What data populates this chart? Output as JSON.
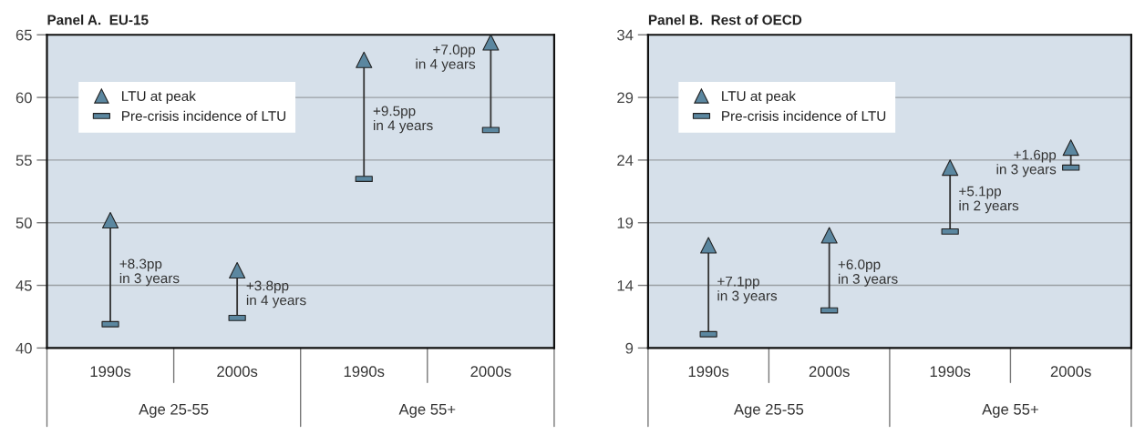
{
  "chart_data": [
    {
      "type": "scatter",
      "title": "Panel A.  EU-15",
      "categories": [
        "1990s",
        "2000s",
        "1990s",
        "2000s"
      ],
      "ylim": [
        40,
        65
      ],
      "yticks": [
        40,
        45,
        50,
        55,
        60,
        65
      ],
      "grid": "y",
      "legend": "top left",
      "series": [
        {
          "name": "LTU at peak",
          "color": "#5b87a0",
          "marker": "triangle",
          "values": [
            50.2,
            46.2,
            63.0,
            64.4
          ]
        },
        {
          "name": "Pre-crisis incidence of LTU",
          "color": "#5b87a0",
          "marker": "square",
          "values": [
            41.9,
            42.4,
            53.5,
            57.4
          ]
        }
      ],
      "annotations": [
        "+8.3pp\nin 3 years",
        "+3.8pp\nin 4 years",
        "+9.5pp\nin 4 years",
        "+7.0pp\nin 4 years",
        "Age 25-55",
        "Age 55+"
      ]
    },
    {
      "type": "scatter",
      "title": "Panel B.  Rest of OECD",
      "categories": [
        "1990s",
        "2000s",
        "1990s",
        "2000s"
      ],
      "ylim": [
        9,
        34
      ],
      "yticks": [
        9,
        14,
        19,
        24,
        29,
        34
      ],
      "grid": "y",
      "legend": "top left",
      "series": [
        {
          "name": "LTU at peak",
          "color": "#5b87a0",
          "marker": "triangle",
          "values": [
            17.2,
            18.0,
            23.4,
            25.0
          ]
        },
        {
          "name": "Pre-crisis incidence of LTU",
          "color": "#5b87a0",
          "marker": "square",
          "values": [
            10.1,
            12.0,
            18.3,
            23.4
          ]
        }
      ],
      "annotations": [
        "+7.1pp\nin 3 years",
        "+6.0pp\nin 3 years",
        "+5.1pp\nin 2 years",
        "+1.6pp\nin 3 years",
        "Age 25-55",
        "Age 55+"
      ]
    }
  ]
}
